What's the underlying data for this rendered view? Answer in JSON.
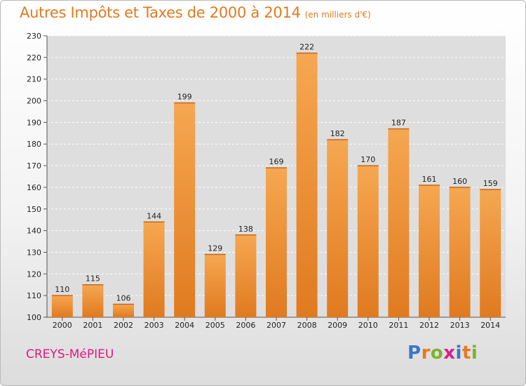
{
  "title": "Autres Impôts et Taxes de 2000 à 2014",
  "subtitle": "(en milliers d'€)",
  "commune": "CREYS-MéPIEU",
  "logo": {
    "letters": [
      "P",
      "r",
      "o",
      "x",
      "i",
      "t",
      "i"
    ],
    "colors": [
      "#3a78c8",
      "#e9781e",
      "#7cb32b",
      "#d9208a",
      "#3a78c8",
      "#e9781e",
      "#7cb32b"
    ]
  },
  "colors": {
    "bar_top": "#f6a751",
    "bar_bottom": "#e07a1f",
    "title": "#e27a1f",
    "commune": "#e0197c"
  },
  "chart_data": {
    "type": "bar",
    "categories": [
      "2000",
      "2001",
      "2002",
      "2003",
      "2004",
      "2005",
      "2006",
      "2007",
      "2008",
      "2009",
      "2010",
      "2011",
      "2012",
      "2013",
      "2014"
    ],
    "values": [
      110,
      115,
      106,
      144,
      199,
      129,
      138,
      169,
      222,
      182,
      170,
      187,
      161,
      160,
      159
    ],
    "ylim": [
      100,
      230
    ],
    "yticks": [
      100,
      110,
      120,
      130,
      140,
      150,
      160,
      170,
      180,
      190,
      200,
      210,
      220,
      230
    ],
    "grid": true
  }
}
